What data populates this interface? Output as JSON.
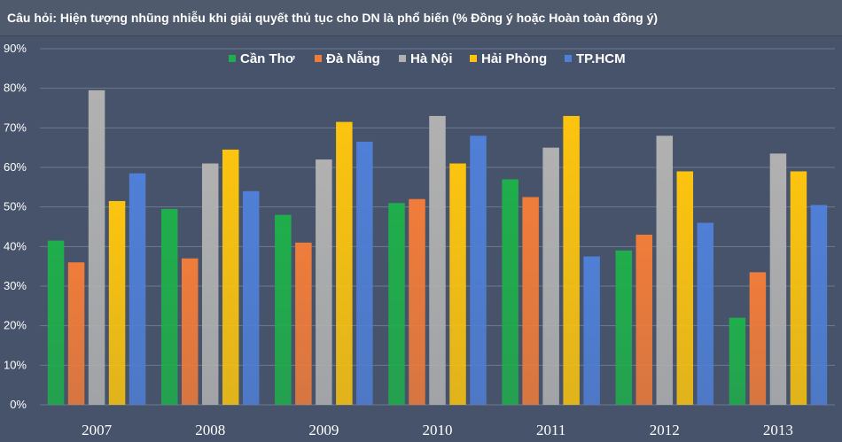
{
  "chart_data": {
    "type": "bar",
    "title": "Câu hỏi: Hiện tượng nhũng nhiễu khi giải quyết thủ tục cho DN là phổ biến (% Đồng ý hoặc Hoàn toàn đồng ý)",
    "xlabel": "",
    "ylabel": "",
    "ylim": [
      0,
      90
    ],
    "yticks": [
      "0%",
      "10%",
      "20%",
      "30%",
      "40%",
      "50%",
      "60%",
      "70%",
      "80%",
      "90%"
    ],
    "categories": [
      "2007",
      "2008",
      "2009",
      "2010",
      "2011",
      "2012",
      "2013"
    ],
    "legend_position": "top",
    "series": [
      {
        "name": "Cần Thơ",
        "color": "#1fae4b",
        "values": [
          41.5,
          49.5,
          48,
          51,
          57,
          39,
          22
        ]
      },
      {
        "name": "Đà Nẵng",
        "color": "#f07c3a",
        "values": [
          36,
          37,
          41,
          52,
          52.5,
          43,
          33.5
        ]
      },
      {
        "name": "Hà Nội",
        "color": "#b1b1b1",
        "values": [
          79.5,
          61,
          62,
          73,
          65,
          68,
          63.5
        ]
      },
      {
        "name": "Hải Phòng",
        "color": "#fcc40f",
        "values": [
          51.5,
          64.5,
          71.5,
          61,
          73,
          59,
          59
        ]
      },
      {
        "name": "TP.HCM",
        "color": "#4f7fd6",
        "values": [
          58.5,
          54,
          66.5,
          68,
          37.5,
          46,
          50.5
        ]
      }
    ]
  }
}
